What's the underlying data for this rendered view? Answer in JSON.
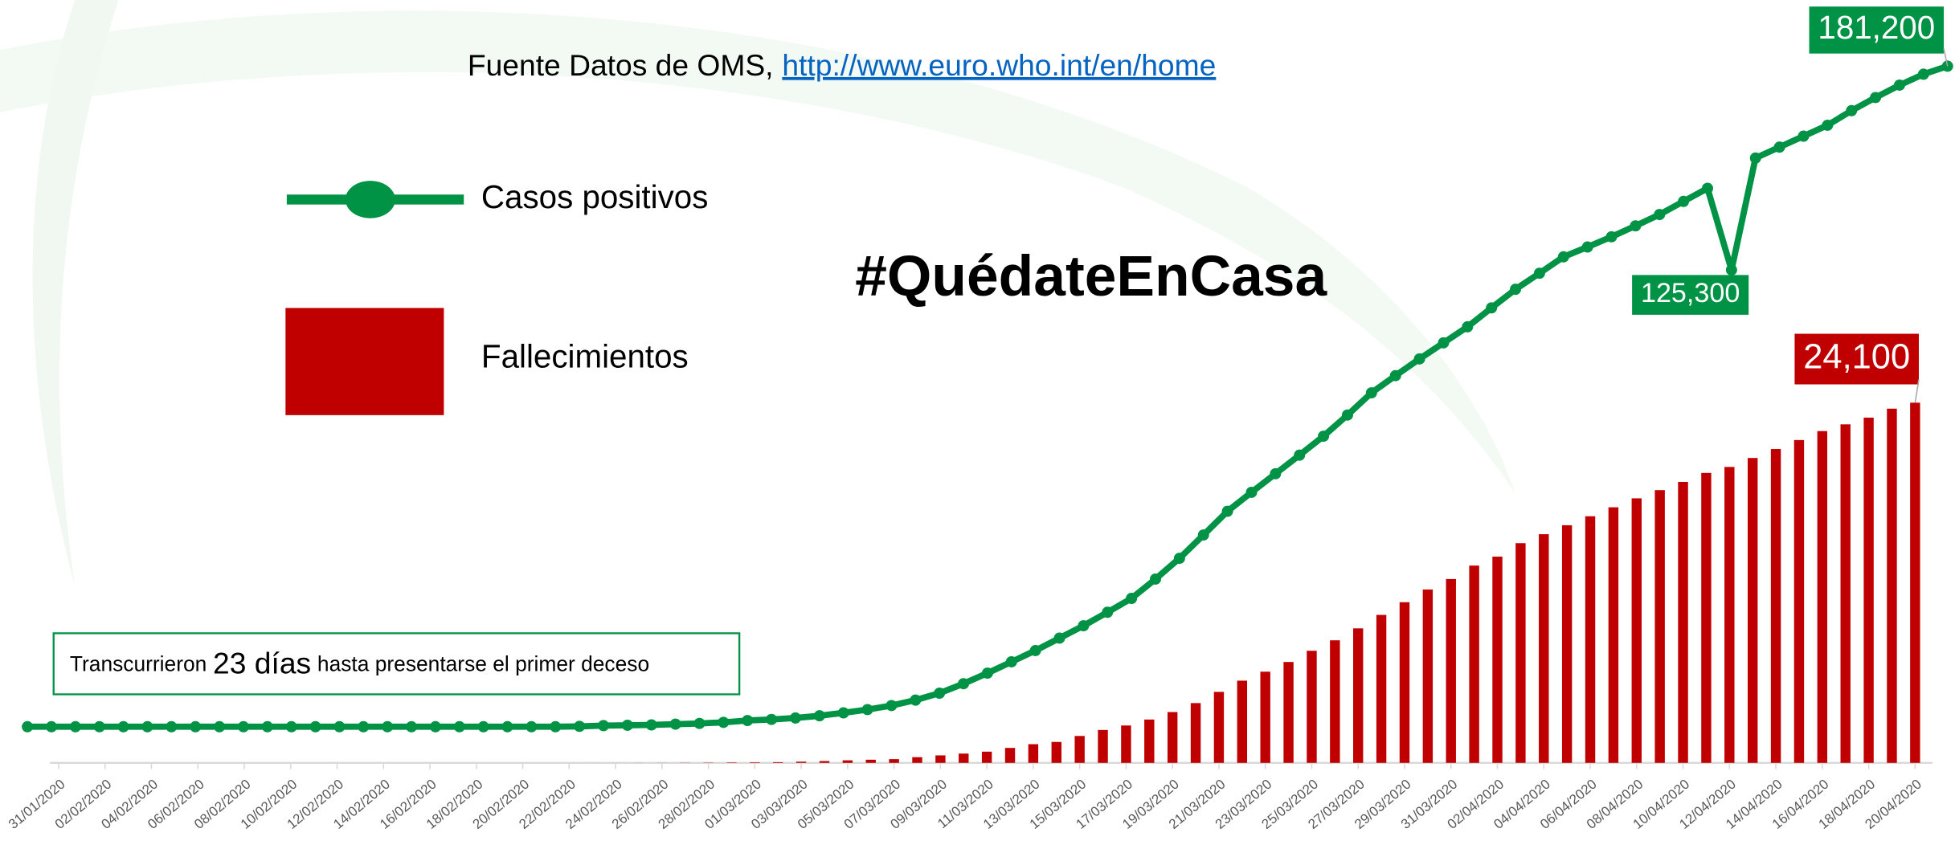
{
  "title": "#QuédateEnCasa",
  "source": "Fuente Datos de OMS,",
  "source_url": "http://www.euro.who.int/en/home",
  "annotation": [
    "Transcurrieron",
    "23 días",
    "hasta presentarse el primer deceso"
  ],
  "chart_data": {
    "type": "bar",
    "categories": [
      "31/01/2020",
      null,
      "02/02/2020",
      null,
      "04/02/2020",
      null,
      "06/02/2020",
      null,
      "08/02/2020",
      null,
      "10/02/2020",
      null,
      "12/02/2020",
      null,
      "14/02/2020",
      null,
      "16/02/2020",
      null,
      "18/02/2020",
      null,
      "20/02/2020",
      null,
      "22/02/2020",
      null,
      "24/02/2020",
      null,
      "26/02/2020",
      null,
      "28/02/2020",
      null,
      "01/03/2020",
      null,
      "03/03/2020",
      null,
      "05/03/2020",
      null,
      "07/03/2020",
      null,
      "09/03/2020",
      null,
      "11/03/2020",
      null,
      "13/03/2020",
      null,
      "15/03/2020",
      null,
      "17/03/2020",
      null,
      "19/03/2020",
      null,
      "21/03/2020",
      null,
      "23/03/2020",
      null,
      "25/03/2020",
      null,
      "27/03/2020",
      null,
      "29/03/2020",
      null,
      "31/03/2020",
      null,
      "02/04/2020",
      null,
      "04/04/2020",
      null,
      "06/04/2020",
      null,
      "08/04/2020",
      null,
      "10/04/2020",
      null,
      "12/04/2020",
      null,
      "14/04/2020",
      null,
      "16/04/2020",
      null,
      "18/04/2020",
      null,
      "20/04/2020"
    ],
    "series": [
      {
        "name": "Casos positivos",
        "type": "line",
        "axis": "y2",
        "color": "#009245",
        "values": [
          1,
          1,
          1,
          1,
          1,
          1,
          1,
          1,
          1,
          2,
          2,
          2,
          2,
          2,
          2,
          2,
          2,
          2,
          2,
          2,
          2,
          2,
          2,
          100,
          300,
          400,
          500,
          700,
          900,
          1200,
          1700,
          2000,
          2400,
          3000,
          3800,
          4700,
          5800,
          7300,
          9200,
          11800,
          14700,
          17800,
          20900,
          24300,
          27700,
          31400,
          35200,
          40500,
          46200,
          52600,
          59100,
          64300,
          69400,
          74500,
          79700,
          85500,
          91600,
          96300,
          100900,
          105300,
          109700,
          114900,
          120000,
          124400,
          128900,
          131600,
          134400,
          137400,
          140500,
          144100,
          147700,
          125300,
          156000,
          159000,
          162000,
          165000,
          169000,
          172600,
          176000,
          179000,
          181200
        ],
        "value_labels": [
          null,
          null,
          null,
          null,
          null,
          null,
          null,
          null,
          null,
          null,
          null,
          null,
          null,
          null,
          null,
          null,
          null,
          null,
          null,
          null,
          null,
          null,
          null,
          null,
          null,
          null,
          null,
          null,
          null,
          null,
          null,
          null,
          null,
          null,
          null,
          null,
          null,
          null,
          null,
          null,
          null,
          null,
          null,
          null,
          null,
          null,
          null,
          null,
          null,
          null,
          null,
          null,
          null,
          null,
          null,
          null,
          null,
          null,
          null,
          null,
          null,
          null,
          null,
          null,
          null,
          null,
          null,
          null,
          null,
          null,
          null,
          "125,300",
          null,
          null,
          null,
          null,
          null,
          null,
          null,
          null,
          "181,200"
        ]
      },
      {
        "name": "Fallecimientos",
        "type": "bar",
        "color": "#c00000",
        "values": [
          0,
          0,
          0,
          0,
          0,
          0,
          0,
          0,
          0,
          0,
          0,
          0,
          0,
          0,
          0,
          0,
          0,
          0,
          0,
          0,
          0,
          0,
          0,
          1,
          2,
          3,
          5,
          10,
          17,
          28,
          36,
          47,
          80,
          120,
          170,
          210,
          250,
          380,
          500,
          620,
          750,
          1000,
          1250,
          1400,
          1800,
          2200,
          2500,
          2900,
          3400,
          4000,
          4750,
          5500,
          6100,
          6750,
          7500,
          8200,
          9000,
          9900,
          10750,
          11600,
          12300,
          13200,
          13800,
          14700,
          15300,
          15900,
          16500,
          17100,
          17700,
          18250,
          18800,
          19400,
          19800,
          20400,
          21000,
          21600,
          22200,
          22650,
          23100,
          23700,
          24100
        ],
        "value_labels": [
          null,
          null,
          null,
          null,
          null,
          null,
          null,
          null,
          null,
          null,
          null,
          null,
          null,
          null,
          null,
          null,
          null,
          null,
          null,
          null,
          null,
          null,
          null,
          null,
          null,
          null,
          null,
          null,
          null,
          null,
          null,
          null,
          null,
          null,
          null,
          null,
          null,
          null,
          null,
          null,
          null,
          null,
          null,
          null,
          null,
          null,
          null,
          null,
          null,
          null,
          null,
          null,
          null,
          null,
          null,
          null,
          null,
          null,
          null,
          null,
          null,
          null,
          null,
          null,
          null,
          null,
          null,
          null,
          null,
          null,
          null,
          null,
          null,
          null,
          null,
          null,
          null,
          null,
          null,
          null,
          "24,100"
        ]
      }
    ]
  }
}
